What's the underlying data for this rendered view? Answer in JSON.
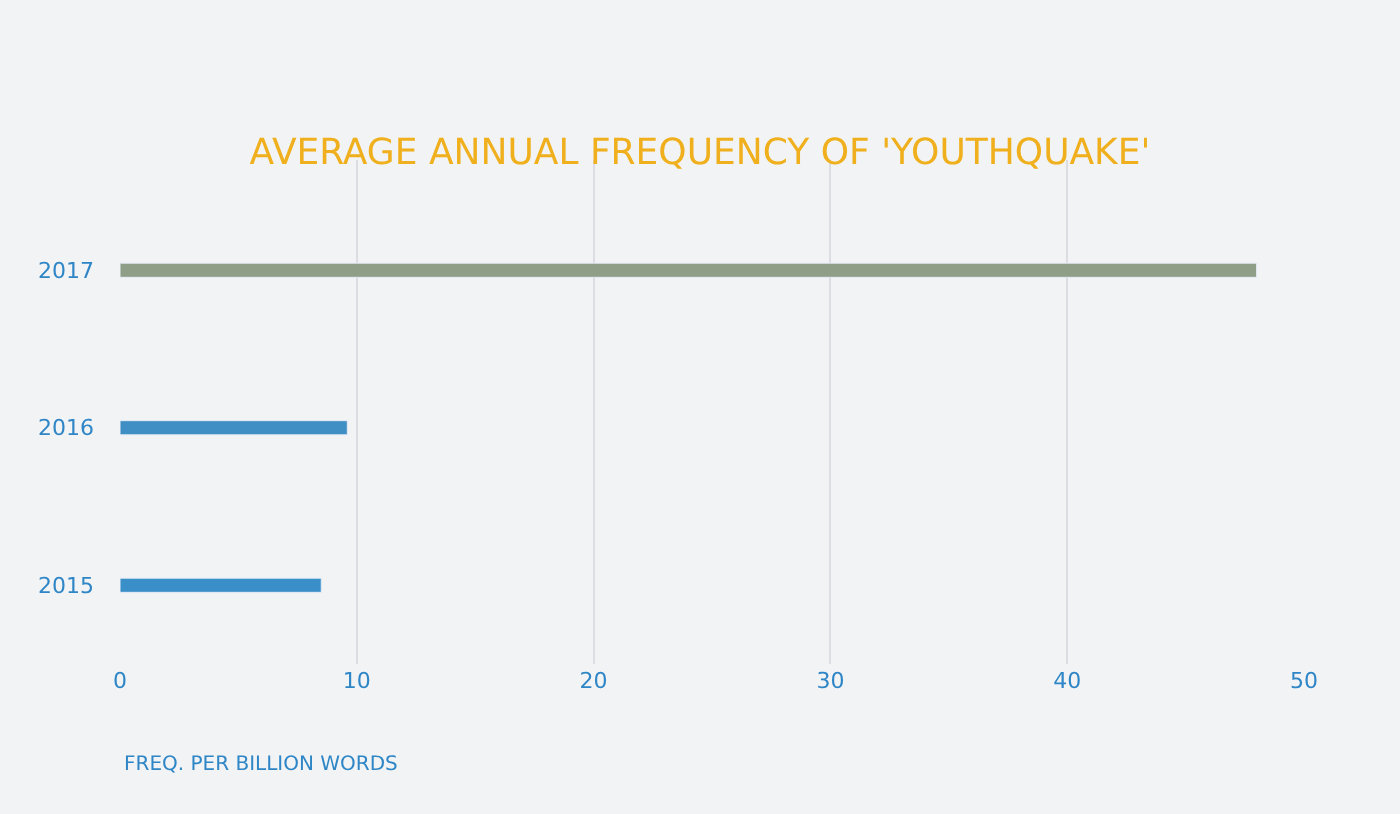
{
  "chart_data": {
    "type": "bar",
    "orientation": "horizontal",
    "title": "AVERAGE ANNUAL FREQUENCY OF 'YOUTHQUAKE'",
    "xlabel": "FREQ. PER BILLION WORDS",
    "categories": [
      "2017",
      "2016",
      "2015"
    ],
    "values": [
      48,
      9.6,
      8.5
    ],
    "colors": [
      "#8f9e86",
      "#3f8fc4",
      "#3a8fc9"
    ],
    "xlim": [
      0,
      50
    ],
    "xticks": [
      0,
      10,
      20,
      30,
      40,
      50
    ],
    "grid": "x"
  }
}
